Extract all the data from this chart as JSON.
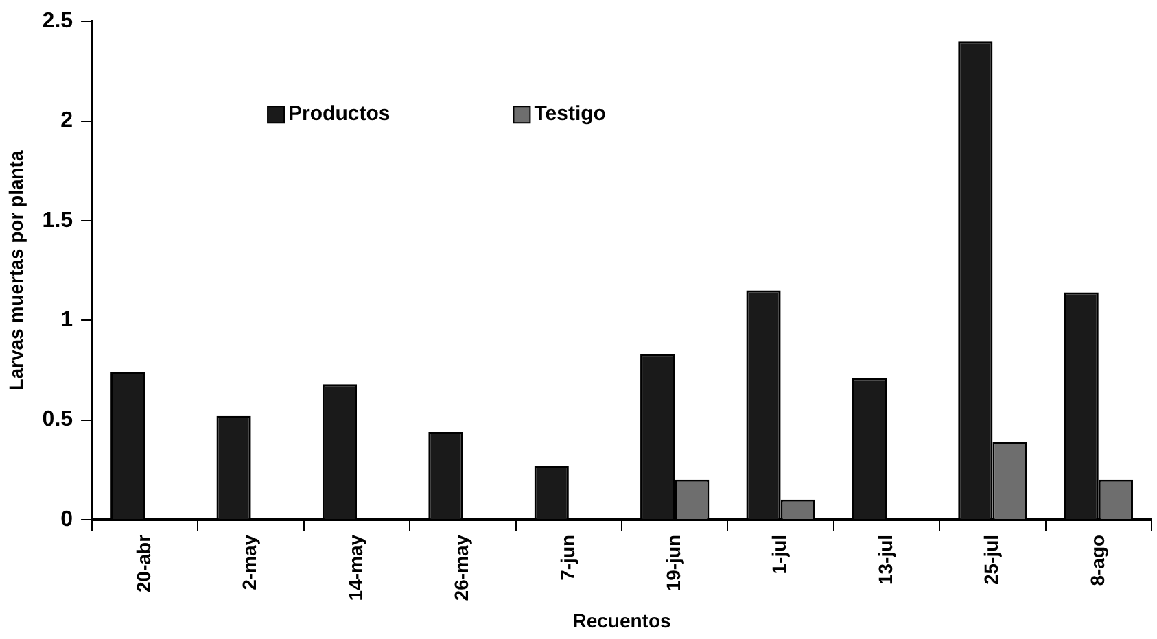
{
  "chart_data": {
    "type": "bar",
    "xlabel": "Recuentos",
    "ylabel": "Larvas muertas por planta",
    "categories": [
      "20-abr",
      "2-may",
      "14-may",
      "26-may",
      "7-jun",
      "19-jun",
      "1-jul",
      "13-jul",
      "25-jul",
      "8-ago"
    ],
    "series": [
      {
        "name": "Productos",
        "color": "#1a1a1a",
        "values": [
          0.74,
          0.52,
          0.68,
          0.44,
          0.27,
          0.83,
          1.15,
          0.71,
          2.4,
          1.14
        ]
      },
      {
        "name": "Testigo",
        "color": "#6e6e6e",
        "values": [
          null,
          null,
          null,
          null,
          null,
          0.2,
          0.1,
          null,
          0.39,
          0.2
        ]
      }
    ],
    "ylim": [
      0,
      2.5
    ],
    "yticks": [
      0,
      0.5,
      1,
      1.5,
      2,
      2.5
    ],
    "grid": false,
    "legend": "top"
  }
}
